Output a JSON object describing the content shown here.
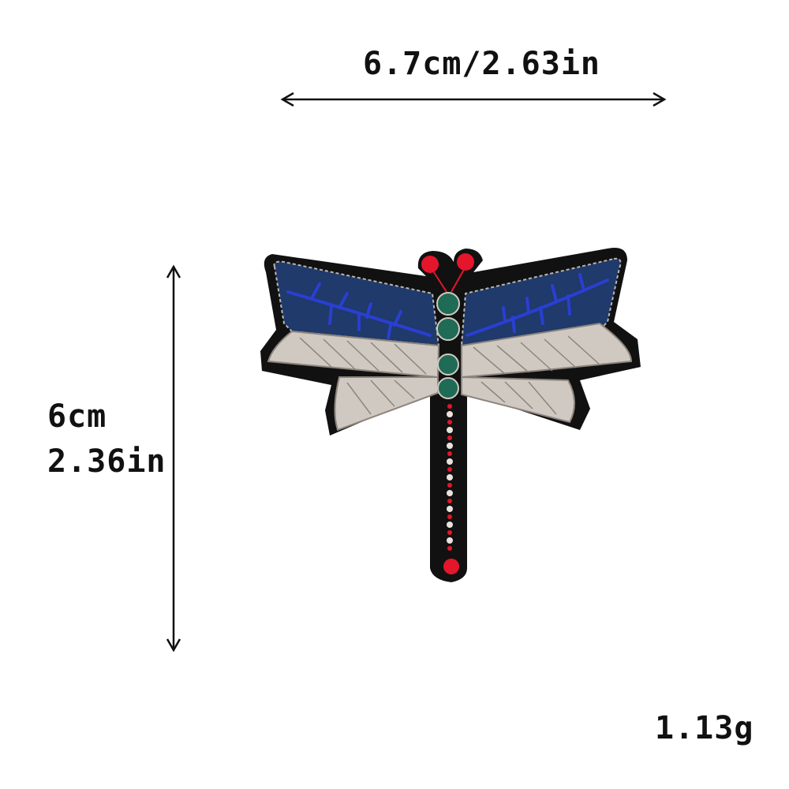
{
  "dimensions": {
    "width_label": "6.7cm/2.63in",
    "height_label_cm": "6cm",
    "height_label_in": "2.36in"
  },
  "weight_label": "1.13g",
  "colors": {
    "outline": "#111111",
    "wing_blue": "#1f3a6b",
    "wing_vein": "#2a3fd1",
    "wing_silver": "#cfc9c2",
    "silver_stitch": "#8d857d",
    "body_green": "#1f6b55",
    "accent_red": "#e3162c",
    "text": "#111111"
  }
}
